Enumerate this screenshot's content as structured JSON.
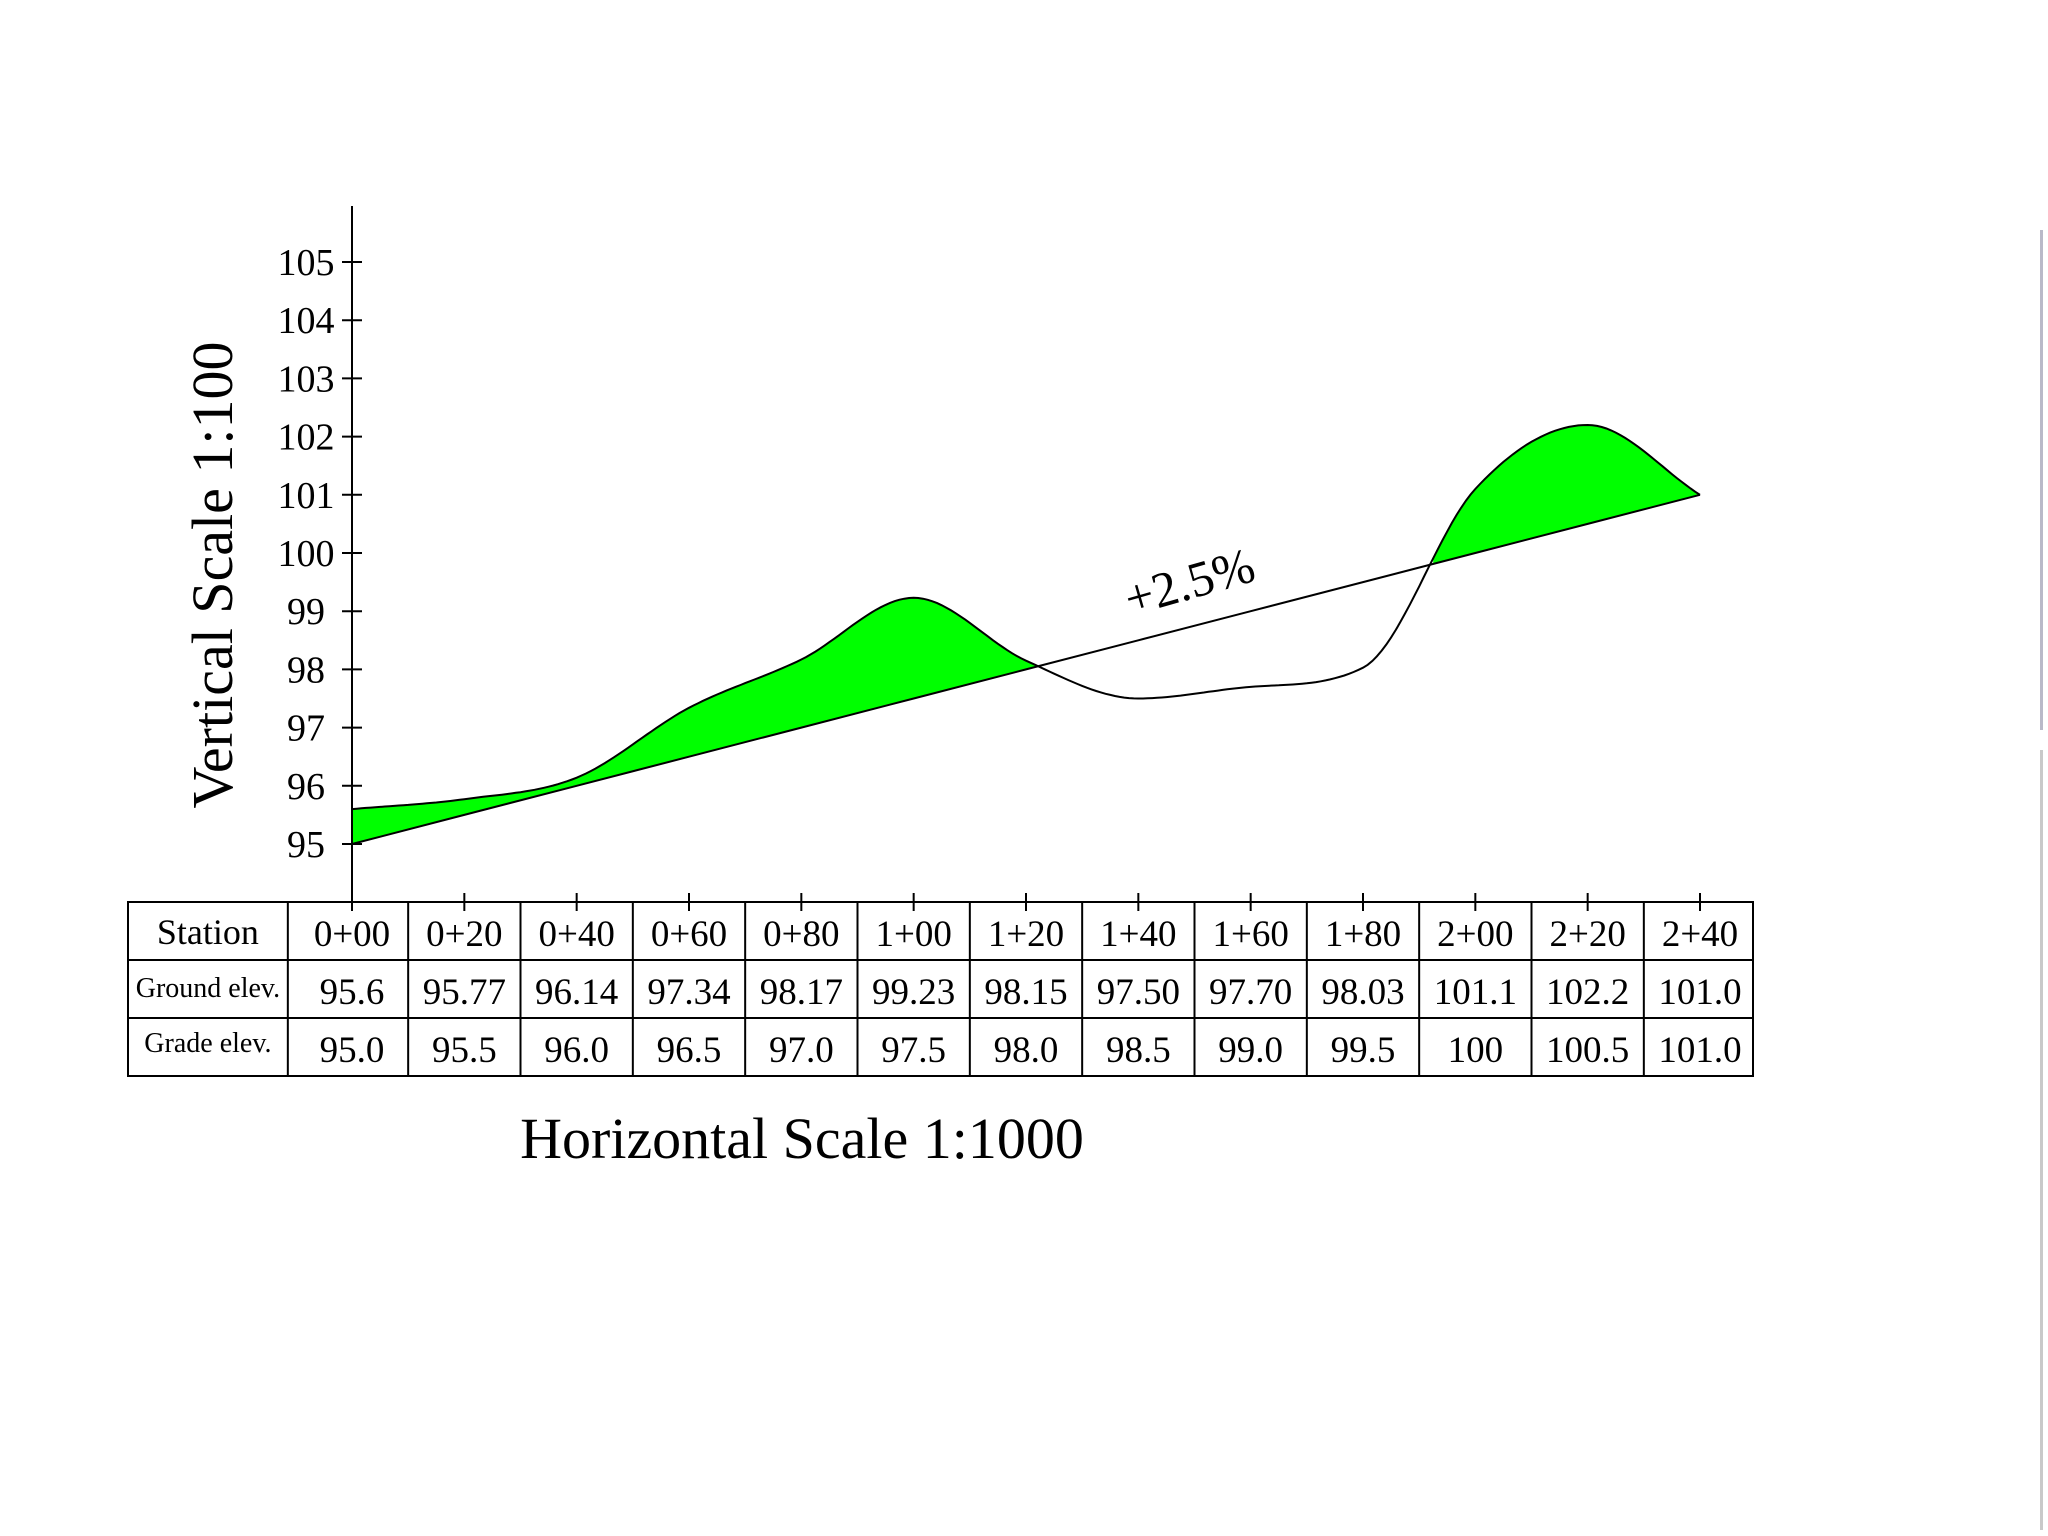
{
  "chart_data": {
    "type": "area",
    "title": "",
    "xlabel": "Horizontal Scale 1:1000",
    "ylabel": "Vertical Scale 1:100",
    "ylim": [
      94,
      106
    ],
    "y_ticks": [
      "95",
      "96",
      "97",
      "98",
      "99",
      "100",
      "101",
      "102",
      "103",
      "104",
      "105"
    ],
    "categories": [
      "0+00",
      "0+20",
      "0+40",
      "0+60",
      "0+80",
      "1+00",
      "1+20",
      "1+40",
      "1+60",
      "1+80",
      "2+00",
      "2+20",
      "2+40"
    ],
    "x_units": [
      0,
      20,
      40,
      60,
      80,
      100,
      120,
      140,
      160,
      180,
      200,
      220,
      240
    ],
    "series": [
      {
        "name": "Ground elev.",
        "values": [
          95.6,
          95.77,
          96.14,
          97.34,
          98.17,
          99.23,
          98.15,
          97.5,
          97.7,
          98.03,
          101.1,
          102.2,
          101.0
        ]
      },
      {
        "name": "Grade elev.",
        "values": [
          95.0,
          95.5,
          96.0,
          96.5,
          97.0,
          97.5,
          98.0,
          98.5,
          99.0,
          99.5,
          100,
          100.5,
          101.0
        ]
      }
    ],
    "annotations": [
      "+2.5%"
    ],
    "fill_color": "#00ff00",
    "line_color": "#000000",
    "grid": false
  },
  "table": {
    "row_headers": [
      "Station",
      "Ground elev.",
      "Grade elev."
    ],
    "ground_text": [
      "95.6",
      "95.77",
      "96.14",
      "97.34",
      "98.17",
      "99.23",
      "98.15",
      "97.50",
      "97.70",
      "98.03",
      "101.1",
      "102.2",
      "101.0"
    ],
    "grade_text": [
      "95.0",
      "95.5",
      "96.0",
      "96.5",
      "97.0",
      "97.5",
      "98.0",
      "98.5",
      "99.0",
      "99.5",
      "100",
      "100.5",
      "101.0"
    ]
  }
}
